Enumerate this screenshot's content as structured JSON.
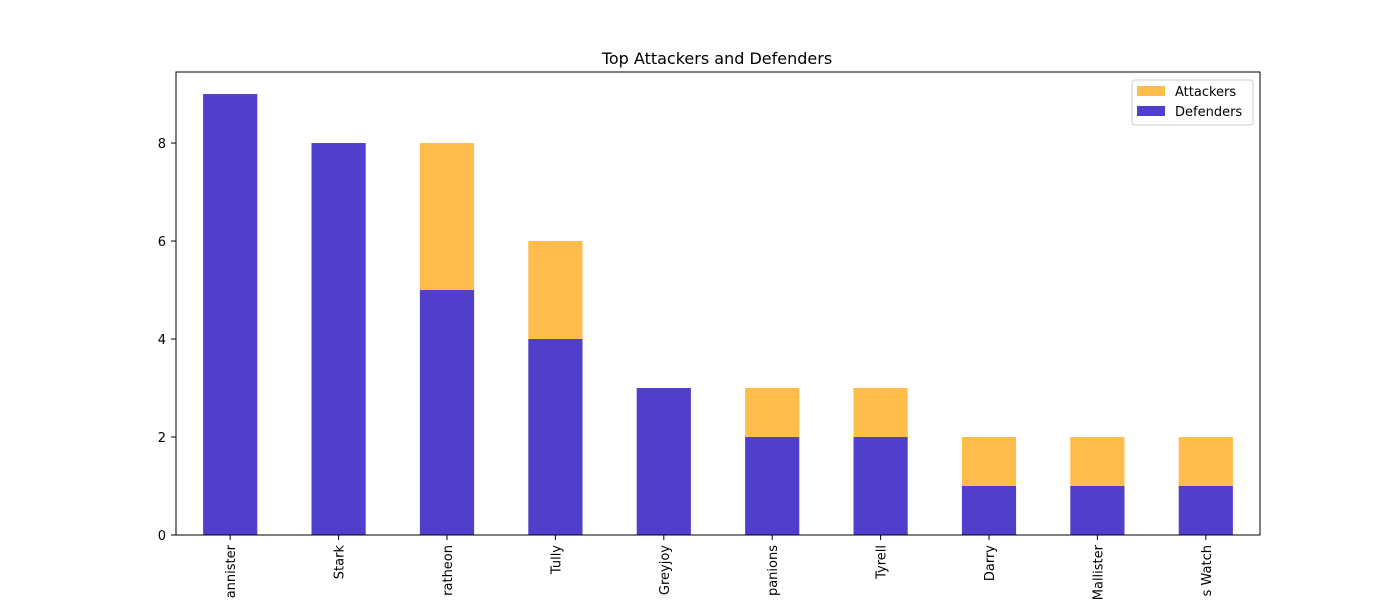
{
  "chart_data": {
    "type": "bar",
    "stacked": true,
    "title": "Top Attackers and Defenders",
    "xlabel": "",
    "ylabel": "",
    "ylim": [
      0,
      9.45
    ],
    "yticks": [
      0,
      2,
      4,
      6,
      8
    ],
    "grid": false,
    "legend_position": "top-right",
    "categories": [
      "Lannister",
      "Stark",
      "Baratheon",
      "Tully",
      "Greyjoy",
      "Brave Companions",
      "Tyrell",
      "Darry",
      "Mallister",
      "Night's Watch"
    ],
    "category_labels_visible": [
      "annister",
      "Stark",
      "ratheon",
      "Tully",
      "Greyjoy",
      "panions",
      "Tyrell",
      "Darry",
      "Mallister",
      "s Watch"
    ],
    "series": [
      {
        "name": "Defenders",
        "color": "#3c2ac4",
        "values": [
          9,
          8,
          5,
          4,
          3,
          2,
          2,
          1,
          1,
          1
        ]
      },
      {
        "name": "Attackers",
        "color": "#fdb538",
        "values": [
          0,
          0,
          3,
          2,
          0,
          1,
          1,
          1,
          1,
          1
        ]
      }
    ],
    "legend": [
      {
        "name": "Attackers",
        "color": "#fdb538"
      },
      {
        "name": "Defenders",
        "color": "#3c2ac4"
      }
    ],
    "bar_alpha": 0.9
  }
}
